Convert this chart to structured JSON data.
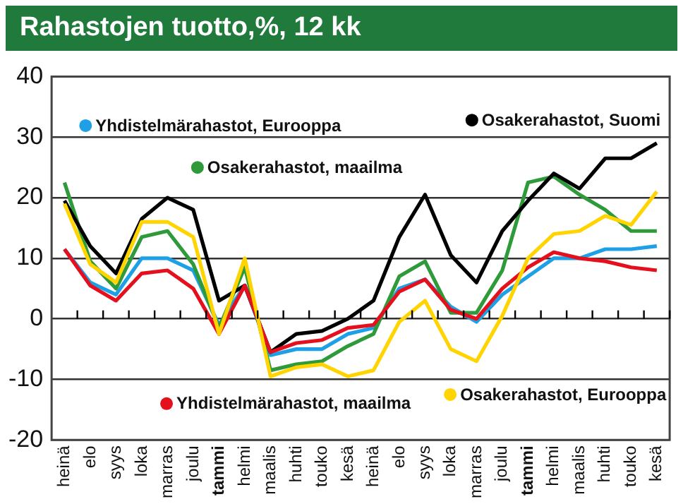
{
  "chart_data": {
    "type": "line",
    "title": "Rahastojen tuotto,%, 12 kk",
    "categories": [
      "heinä",
      "elo",
      "syys",
      "loka",
      "marras",
      "joulu",
      "tammi",
      "helmi",
      "maalis",
      "huhti",
      "touko",
      "kesä",
      "heinä",
      "elo",
      "syys",
      "loka",
      "marras",
      "joulu",
      "tammi",
      "helmi",
      "maalis",
      "huhti",
      "touko",
      "kesä"
    ],
    "series": [
      {
        "name": "Yhdistelmärahastot, Eurooppa",
        "color": "#1ea0e6",
        "values": [
          11.5,
          6,
          4,
          10,
          10,
          8,
          -1,
          5.5,
          -6,
          -5,
          -5,
          -2.5,
          -1.5,
          5,
          6.5,
          2,
          -0.5,
          4,
          7,
          10,
          10,
          11.5,
          11.5,
          12
        ]
      },
      {
        "name": "Osakerahastot, maailma",
        "color": "#2e9a3a",
        "values": [
          22.5,
          9.5,
          5,
          13.5,
          14.5,
          9,
          -1.5,
          8.5,
          -8.5,
          -7.5,
          -7,
          -4.5,
          -2.5,
          7,
          9.5,
          1,
          1,
          8,
          22.5,
          23.5,
          20.5,
          18,
          14.5,
          14.5
        ]
      },
      {
        "name": "Osakerahastot, Suomi",
        "color": "#000000",
        "values": [
          19.5,
          12,
          7.5,
          16.5,
          20,
          18,
          3,
          5.5,
          -5.5,
          -2.5,
          -2,
          0,
          3,
          13.5,
          20.5,
          10.5,
          6,
          14.5,
          19.5,
          24,
          21.5,
          26.5,
          26.5,
          29
        ]
      },
      {
        "name": "Yhdistelmärahastot, maailma",
        "color": "#e4101e",
        "values": [
          11.5,
          5.5,
          3,
          7.5,
          8,
          5,
          -2.5,
          5.5,
          -5.5,
          -4,
          -3.5,
          -1.5,
          -1,
          4.5,
          6.5,
          1.5,
          0,
          5,
          8.5,
          11,
          10,
          9.5,
          8.5,
          8
        ]
      },
      {
        "name": "Osakerahastot, Eurooppa",
        "color": "#ffd400",
        "values": [
          19,
          9,
          6,
          16,
          16,
          13.5,
          -2.5,
          10,
          -9.5,
          -8,
          -7.5,
          -9.5,
          -8.5,
          -0.5,
          3,
          -5,
          -7,
          0.5,
          10,
          14,
          14.5,
          17,
          15.5,
          21
        ]
      }
    ],
    "ylim": [
      -20,
      40
    ],
    "yticks": [
      -20,
      -10,
      0,
      10,
      20,
      30,
      40
    ],
    "grid": "y",
    "legend": "bottom right",
    "marker": "none",
    "line_style": "solid"
  }
}
